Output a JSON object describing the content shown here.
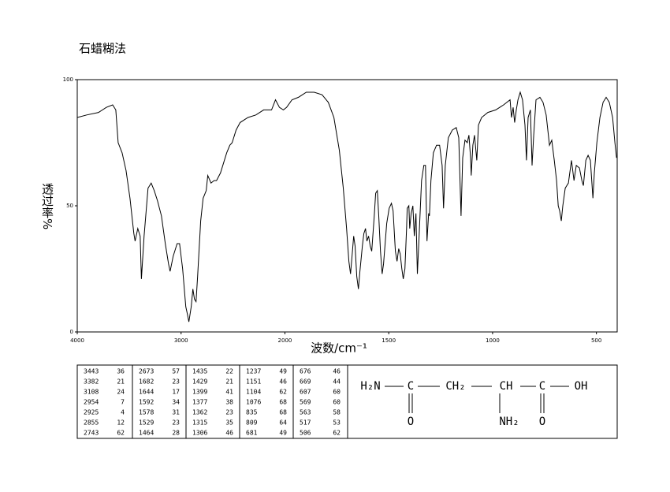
{
  "chart_data": {
    "type": "line",
    "title": "石蜡糊法",
    "xlabel": "波数/cm⁻¹",
    "ylabel": "透过率%",
    "xlim": [
      4000,
      400
    ],
    "xscale_break": 2000,
    "xticks": [
      4000,
      3000,
      2000,
      1500,
      1000,
      500
    ],
    "ylim": [
      0,
      100
    ],
    "yticks": [
      0,
      50,
      100
    ],
    "color": "#000000",
    "x": [
      4000,
      3909,
      3795,
      3720,
      3659,
      3629,
      3606,
      3568,
      3530,
      3492,
      3455,
      3443,
      3417,
      3394,
      3382,
      3356,
      3318,
      3288,
      3258,
      3227,
      3189,
      3152,
      3121,
      3106,
      3076,
      3038,
      3015,
      2985,
      2955,
      2939,
      2925,
      2902,
      2886,
      2871,
      2856,
      2841,
      2811,
      2788,
      2758,
      2743,
      2712,
      2682,
      2659,
      2621,
      2561,
      2530,
      2508,
      2470,
      2432,
      2356,
      2280,
      2205,
      2129,
      2091,
      2053,
      2015,
      1992,
      1966,
      1935,
      1897,
      1859,
      1821,
      1791,
      1764,
      1738,
      1719,
      1703,
      1692,
      1684,
      1677,
      1669,
      1662,
      1654,
      1646,
      1639,
      1627,
      1620,
      1612,
      1605,
      1597,
      1589,
      1582,
      1570,
      1563,
      1555,
      1548,
      1540,
      1532,
      1525,
      1510,
      1498,
      1487,
      1479,
      1468,
      1460,
      1452,
      1445,
      1437,
      1430,
      1422,
      1414,
      1411,
      1403,
      1399,
      1392,
      1384,
      1377,
      1369,
      1362,
      1354,
      1342,
      1331,
      1323,
      1316,
      1308,
      1304,
      1297,
      1285,
      1270,
      1255,
      1243,
      1236,
      1228,
      1213,
      1194,
      1175,
      1163,
      1152,
      1144,
      1133,
      1122,
      1114,
      1106,
      1103,
      1095,
      1087,
      1076,
      1068,
      1053,
      1023,
      985,
      947,
      916,
      909,
      901,
      894,
      886,
      878,
      867,
      856,
      844,
      837,
      829,
      818,
      810,
      802,
      791,
      772,
      757,
      742,
      726,
      715,
      703,
      692,
      684,
      677,
      669,
      662,
      650,
      635,
      620,
      608,
      597,
      582,
      570,
      563,
      551,
      540,
      529,
      517,
      510,
      498,
      483,
      468,
      453,
      438,
      422,
      411,
      403
    ],
    "values": [
      85,
      86,
      87,
      89,
      90,
      88,
      75,
      71,
      64,
      53,
      39,
      36,
      41,
      38,
      21,
      38,
      57,
      59,
      56,
      52,
      46,
      35,
      27,
      24,
      30,
      35,
      35,
      25,
      10,
      7,
      4,
      10,
      17,
      13,
      12,
      22,
      44,
      53,
      56,
      62,
      59,
      60,
      60,
      63,
      71,
      74,
      75,
      80,
      83,
      85,
      86,
      88,
      88,
      92,
      89,
      88,
      89,
      92,
      93,
      95,
      95,
      94,
      91,
      85,
      72,
      57,
      41,
      28,
      23,
      30,
      38,
      34,
      22,
      17,
      24,
      34,
      39,
      41,
      36,
      38,
      34,
      32,
      46,
      55,
      56,
      46,
      32,
      23,
      27,
      43,
      49,
      51,
      48,
      32,
      28,
      33,
      31,
      25,
      21,
      25,
      41,
      49,
      50,
      41,
      47,
      50,
      38,
      47,
      23,
      38,
      60,
      66,
      66,
      36,
      47,
      46,
      60,
      71,
      74,
      74,
      66,
      49,
      66,
      77,
      80,
      81,
      77,
      46,
      69,
      76,
      75,
      78,
      69,
      62,
      74,
      78,
      68,
      82,
      85,
      87,
      88,
      90,
      92,
      85,
      89,
      83,
      88,
      92,
      95,
      92,
      82,
      68,
      85,
      88,
      66,
      78,
      92,
      93,
      91,
      86,
      74,
      76,
      68,
      60,
      50,
      48,
      44,
      50,
      57,
      59,
      68,
      60,
      66,
      65,
      60,
      58,
      68,
      70,
      68,
      53,
      63,
      75,
      85,
      91,
      93,
      91,
      85,
      75,
      69
    ]
  },
  "peak_table": [
    [
      [
        3443,
        36
      ],
      [
        3382,
        21
      ],
      [
        3108,
        24
      ],
      [
        2954,
        7
      ],
      [
        2925,
        4
      ],
      [
        2855,
        12
      ],
      [
        2743,
        62
      ]
    ],
    [
      [
        2673,
        57
      ],
      [
        1682,
        23
      ],
      [
        1644,
        17
      ],
      [
        1592,
        34
      ],
      [
        1578,
        31
      ],
      [
        1529,
        23
      ],
      [
        1464,
        28
      ]
    ],
    [
      [
        1435,
        22
      ],
      [
        1429,
        21
      ],
      [
        1399,
        41
      ],
      [
        1377,
        38
      ],
      [
        1362,
        23
      ],
      [
        1315,
        35
      ],
      [
        1306,
        46
      ]
    ],
    [
      [
        1237,
        49
      ],
      [
        1151,
        46
      ],
      [
        1104,
        62
      ],
      [
        1076,
        68
      ],
      [
        835,
        68
      ],
      [
        809,
        64
      ],
      [
        681,
        49
      ]
    ],
    [
      [
        676,
        46
      ],
      [
        669,
        44
      ],
      [
        607,
        60
      ],
      [
        569,
        60
      ],
      [
        563,
        58
      ],
      [
        517,
        53
      ],
      [
        506,
        62
      ]
    ]
  ],
  "structure": {
    "atoms": [
      "H₂N",
      "C",
      "CH₂",
      "CH",
      "C",
      "OH",
      "O",
      "NH₂",
      "O"
    ]
  }
}
